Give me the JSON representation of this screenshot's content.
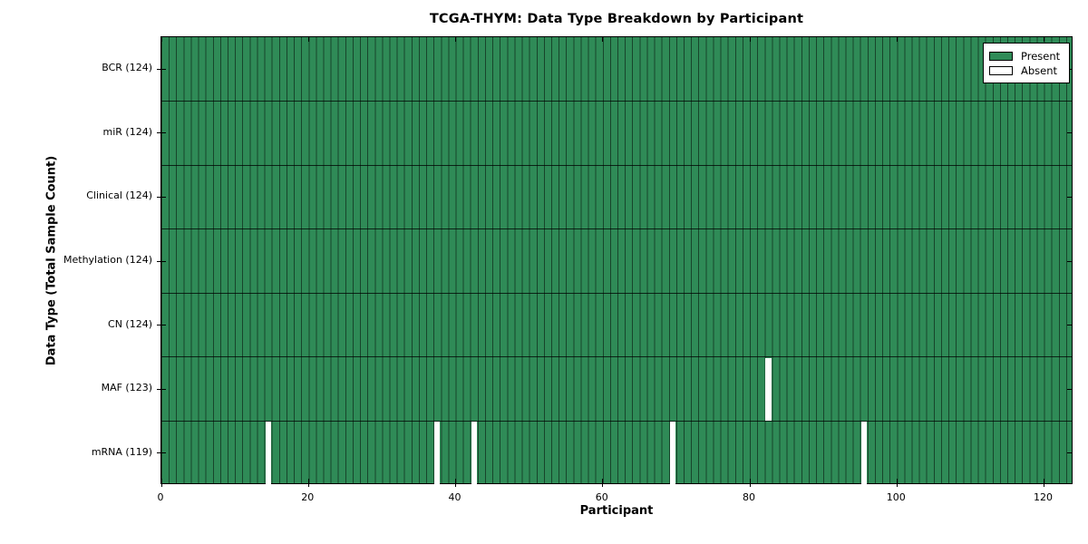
{
  "title": "TCGA-THYM: Data Type Breakdown by Participant",
  "colors": {
    "present": "#2f8b57",
    "absent": "#ffffff",
    "column_line": "rgba(0,0,0,0.5)",
    "row_line": "rgba(0,0,0,0.75)",
    "axis": "#000000",
    "background": "#ffffff"
  },
  "chart_data": {
    "type": "heatmap",
    "title": "TCGA-THYM: Data Type Breakdown by Participant",
    "xlabel": "Participant",
    "ylabel": "Data Type (Total Sample Count)",
    "x_ticks": [
      0,
      20,
      40,
      60,
      80,
      100,
      120
    ],
    "x_range": [
      0,
      124
    ],
    "n_participants": 124,
    "grid": "cell-borders",
    "rows": [
      {
        "name": "BCR",
        "label": "BCR (124)",
        "total": 124,
        "absent_participants": []
      },
      {
        "name": "miR",
        "label": "miR (124)",
        "total": 124,
        "absent_participants": []
      },
      {
        "name": "Clinical",
        "label": "Clinical (124)",
        "total": 124,
        "absent_participants": []
      },
      {
        "name": "Methylation",
        "label": "Methylation (124)",
        "total": 124,
        "absent_participants": []
      },
      {
        "name": "CN",
        "label": "CN (124)",
        "total": 124,
        "absent_participants": []
      },
      {
        "name": "MAF",
        "label": "MAF (123)",
        "total": 123,
        "absent_participants": [
          82
        ]
      },
      {
        "name": "mRNA",
        "label": "mRNA (119)",
        "total": 119,
        "absent_participants": [
          14,
          37,
          42,
          69,
          95
        ]
      }
    ],
    "legend": [
      {
        "label": "Present",
        "color": "#2f8b57"
      },
      {
        "label": "Absent",
        "color": "#ffffff"
      }
    ],
    "legend_position": "upper right"
  }
}
